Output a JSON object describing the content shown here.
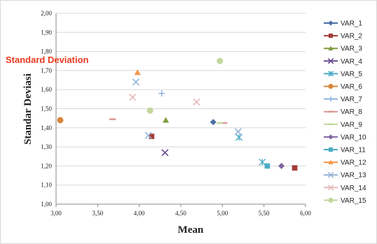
{
  "chart_data": {
    "type": "scatter",
    "overlay_label": "Standard Deviation",
    "xlabel": "Mean",
    "ylabel": "Standar Deviasi",
    "xlim": [
      3.0,
      6.0
    ],
    "ylim": [
      1.0,
      2.0
    ],
    "x_ticks": [
      "3,00",
      "3,50",
      "4,00",
      "4,50",
      "5,00",
      "5,50",
      "6,00"
    ],
    "y_ticks": [
      "1,00",
      "1,10",
      "1,20",
      "1,30",
      "1,40",
      "1,50",
      "1,60",
      "1,70",
      "1,80",
      "1,90",
      "2,00"
    ],
    "grid": true,
    "legend_position": "right",
    "series": [
      {
        "name": "VAR_1",
        "color": "#4a6fa5",
        "marker": "diamond",
        "points": [
          [
            4.89,
            1.43
          ]
        ]
      },
      {
        "name": "VAR_2",
        "color": "#a33c3a",
        "marker": "square",
        "points": [
          [
            4.15,
            1.355
          ],
          [
            5.87,
            1.19
          ]
        ]
      },
      {
        "name": "VAR_3",
        "color": "#7f9b3e",
        "marker": "triangle",
        "points": [
          [
            4.32,
            1.44
          ]
        ]
      },
      {
        "name": "VAR_4",
        "color": "#6a4c93",
        "marker": "x",
        "points": [
          [
            4.31,
            1.27
          ]
        ]
      },
      {
        "name": "VAR_5",
        "color": "#4bacc6",
        "marker": "star",
        "points": [
          [
            5.2,
            1.35
          ],
          [
            5.48,
            1.22
          ]
        ]
      },
      {
        "name": "VAR_6",
        "color": "#d9853b",
        "marker": "circle",
        "points": [
          [
            3.05,
            1.44
          ]
        ]
      },
      {
        "name": "VAR_7",
        "color": "#8eb4e3",
        "marker": "plus",
        "points": [
          [
            4.27,
            1.58
          ]
        ]
      },
      {
        "name": "VAR_8",
        "color": "#d99694",
        "marker": "dash",
        "points": [
          [
            3.68,
            1.445
          ],
          [
            5.02,
            1.425
          ]
        ]
      },
      {
        "name": "VAR_9",
        "color": "#c3d69b",
        "marker": "dash",
        "points": [
          [
            4.97,
            1.425
          ]
        ]
      },
      {
        "name": "VAR_10",
        "color": "#8064a2",
        "marker": "diamond",
        "points": [
          [
            5.71,
            1.2
          ]
        ]
      },
      {
        "name": "VAR_11",
        "color": "#4bacc6",
        "marker": "square",
        "points": [
          [
            5.54,
            1.2
          ]
        ]
      },
      {
        "name": "VAR_12",
        "color": "#f79646",
        "marker": "triangle",
        "points": [
          [
            3.98,
            1.69
          ]
        ]
      },
      {
        "name": "VAR_13",
        "color": "#95b3d7",
        "marker": "x",
        "points": [
          [
            3.96,
            1.64
          ],
          [
            4.11,
            1.36
          ],
          [
            5.19,
            1.38
          ]
        ]
      },
      {
        "name": "VAR_14",
        "color": "#e6b9b8",
        "marker": "x",
        "points": [
          [
            3.92,
            1.56
          ],
          [
            4.69,
            1.535
          ]
        ]
      },
      {
        "name": "VAR_15",
        "color": "#c3d69b",
        "marker": "circle",
        "points": [
          [
            4.13,
            1.49
          ],
          [
            4.97,
            1.75
          ]
        ]
      }
    ]
  }
}
